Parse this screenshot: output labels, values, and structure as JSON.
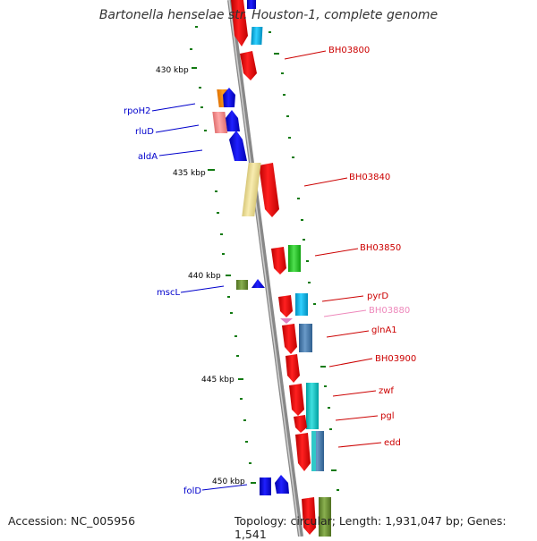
{
  "title": "Bartonella henselae str. Houston-1, complete genome",
  "footer": {
    "accession": "Accession: NC_005956",
    "summary": "Topology: circular; Length: 1,931,047 bp; Genes: 1,541"
  },
  "scale_labels": [
    "430 kbp",
    "435 kbp",
    "440 kbp",
    "445 kbp",
    "450 kbp"
  ],
  "genes_left": [
    {
      "label": "rpoH2",
      "color": "#0000cc"
    },
    {
      "label": "rluD",
      "color": "#0000cc"
    },
    {
      "label": "aldA",
      "color": "#0000cc"
    },
    {
      "label": "mscL",
      "color": "#0000cc"
    },
    {
      "label": "folD",
      "color": "#0000cc"
    }
  ],
  "genes_right": [
    {
      "label": "BH03800",
      "color": "#cc0000"
    },
    {
      "label": "BH03840",
      "color": "#cc0000"
    },
    {
      "label": "BH03850",
      "color": "#cc0000"
    },
    {
      "label": "pyrD",
      "color": "#cc0000"
    },
    {
      "label": "BH03880",
      "color": "#ee88bb"
    },
    {
      "label": "glnA1",
      "color": "#cc0000"
    },
    {
      "label": "BH03900",
      "color": "#cc0000"
    },
    {
      "label": "zwf",
      "color": "#cc0000"
    },
    {
      "label": "pgl",
      "color": "#cc0000"
    },
    {
      "label": "edd",
      "color": "#cc0000"
    }
  ]
}
